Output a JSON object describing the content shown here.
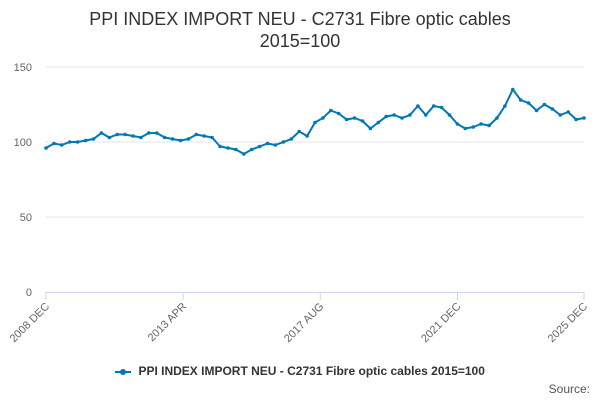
{
  "chart_data": {
    "type": "line",
    "title_line1": "PPI INDEX IMPORT NEU - C2731 Fibre optic cables",
    "title_line2": "2015=100",
    "xlabel": "",
    "ylabel": "",
    "ylim": [
      0,
      150
    ],
    "y_ticks": [
      "0",
      "50",
      "100",
      "150"
    ],
    "x_ticks": [
      "2008 DEC",
      "2013 APR",
      "2017 AUG",
      "2021 DEC",
      "2025 DEC"
    ],
    "grid": true,
    "legend_position": "bottom",
    "series": [
      {
        "name": "PPI INDEX IMPORT NEU - C2731 Fibre optic cables 2015=100",
        "color": "#0077b6",
        "points": [
          [
            "2008-12",
            96
          ],
          [
            "2009-03",
            99
          ],
          [
            "2009-06",
            98
          ],
          [
            "2009-09",
            100
          ],
          [
            "2009-12",
            100
          ],
          [
            "2010-03",
            101
          ],
          [
            "2010-06",
            102
          ],
          [
            "2010-09",
            106
          ],
          [
            "2010-12",
            103
          ],
          [
            "2011-03",
            105
          ],
          [
            "2011-06",
            105
          ],
          [
            "2011-09",
            104
          ],
          [
            "2011-12",
            103
          ],
          [
            "2012-03",
            106
          ],
          [
            "2012-06",
            106
          ],
          [
            "2012-09",
            103
          ],
          [
            "2012-12",
            102
          ],
          [
            "2013-03",
            101
          ],
          [
            "2013-06",
            102
          ],
          [
            "2013-09",
            105
          ],
          [
            "2013-12",
            104
          ],
          [
            "2014-03",
            103
          ],
          [
            "2014-06",
            97
          ],
          [
            "2014-09",
            96
          ],
          [
            "2014-12",
            95
          ],
          [
            "2015-03",
            92
          ],
          [
            "2015-06",
            95
          ],
          [
            "2015-09",
            97
          ],
          [
            "2015-12",
            99
          ],
          [
            "2016-03",
            98
          ],
          [
            "2016-06",
            100
          ],
          [
            "2016-09",
            102
          ],
          [
            "2016-12",
            107
          ],
          [
            "2017-03",
            104
          ],
          [
            "2017-06",
            113
          ],
          [
            "2017-09",
            116
          ],
          [
            "2017-12",
            121
          ],
          [
            "2018-03",
            119
          ],
          [
            "2018-06",
            115
          ],
          [
            "2018-09",
            116
          ],
          [
            "2018-12",
            114
          ],
          [
            "2019-03",
            109
          ],
          [
            "2019-06",
            113
          ],
          [
            "2019-09",
            117
          ],
          [
            "2019-12",
            118
          ],
          [
            "2020-03",
            116
          ],
          [
            "2020-06",
            118
          ],
          [
            "2020-09",
            124
          ],
          [
            "2020-12",
            118
          ],
          [
            "2021-03",
            124
          ],
          [
            "2021-06",
            123
          ],
          [
            "2021-09",
            118
          ],
          [
            "2021-12",
            112
          ],
          [
            "2022-03",
            109
          ],
          [
            "2022-06",
            110
          ],
          [
            "2022-09",
            112
          ],
          [
            "2022-12",
            111
          ],
          [
            "2023-03",
            116
          ],
          [
            "2023-06",
            124
          ],
          [
            "2023-09",
            135
          ],
          [
            "2023-12",
            128
          ],
          [
            "2024-03",
            126
          ],
          [
            "2024-06",
            121
          ],
          [
            "2024-09",
            125
          ],
          [
            "2024-12",
            122
          ],
          [
            "2025-03",
            118
          ],
          [
            "2025-06",
            120
          ],
          [
            "2025-09",
            115
          ],
          [
            "2025-12",
            116
          ]
        ]
      }
    ]
  },
  "legend": {
    "label": "PPI INDEX IMPORT NEU - C2731 Fibre optic cables 2015=100"
  },
  "source": {
    "label": "Source:"
  }
}
